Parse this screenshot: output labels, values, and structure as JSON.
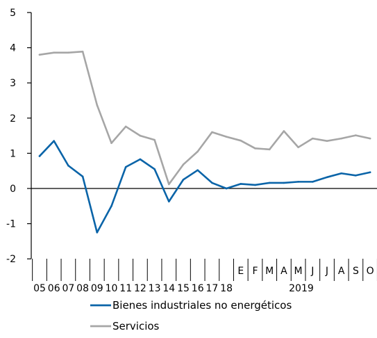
{
  "chart_data": {
    "type": "line",
    "title": "",
    "xlabel": "",
    "ylabel": "",
    "ylim": [
      -2,
      5
    ],
    "yticks": [
      "5",
      "4",
      "3",
      "2",
      "1",
      "0",
      "-1",
      "-2"
    ],
    "ytick_values": [
      5,
      4,
      3,
      2,
      1,
      0,
      -1,
      -2
    ],
    "grid": false,
    "legend_position": "bottom",
    "categories": [
      "05",
      "06",
      "07",
      "08",
      "09",
      "10",
      "11",
      "12",
      "13",
      "14",
      "15",
      "16",
      "17",
      "18",
      "E",
      "F",
      "M",
      "A",
      "M",
      "J",
      "J",
      "A",
      "S",
      "O"
    ],
    "month_tick_labels": [
      "E",
      "F",
      "M",
      "A",
      "M",
      "J",
      "J",
      "A",
      "S",
      "O"
    ],
    "year_group_label": "2019",
    "series": [
      {
        "name": "Bienes industriales no energéticos",
        "color": "#0a64a8",
        "values": [
          0.92,
          1.35,
          0.65,
          0.34,
          -1.25,
          -0.5,
          0.61,
          0.83,
          0.55,
          -0.37,
          0.25,
          0.52,
          0.16,
          0.0,
          0.13,
          0.1,
          0.16,
          0.16,
          0.19,
          0.19,
          0.32,
          0.43,
          0.37,
          0.46
        ]
      },
      {
        "name": "Servicios",
        "color": "#a6a6a6",
        "values": [
          3.8,
          3.86,
          3.86,
          3.89,
          2.37,
          1.29,
          1.76,
          1.5,
          1.38,
          0.12,
          0.68,
          1.05,
          1.6,
          1.47,
          1.36,
          1.14,
          1.11,
          1.63,
          1.17,
          1.42,
          1.35,
          1.42,
          1.51,
          1.42
        ]
      }
    ]
  }
}
